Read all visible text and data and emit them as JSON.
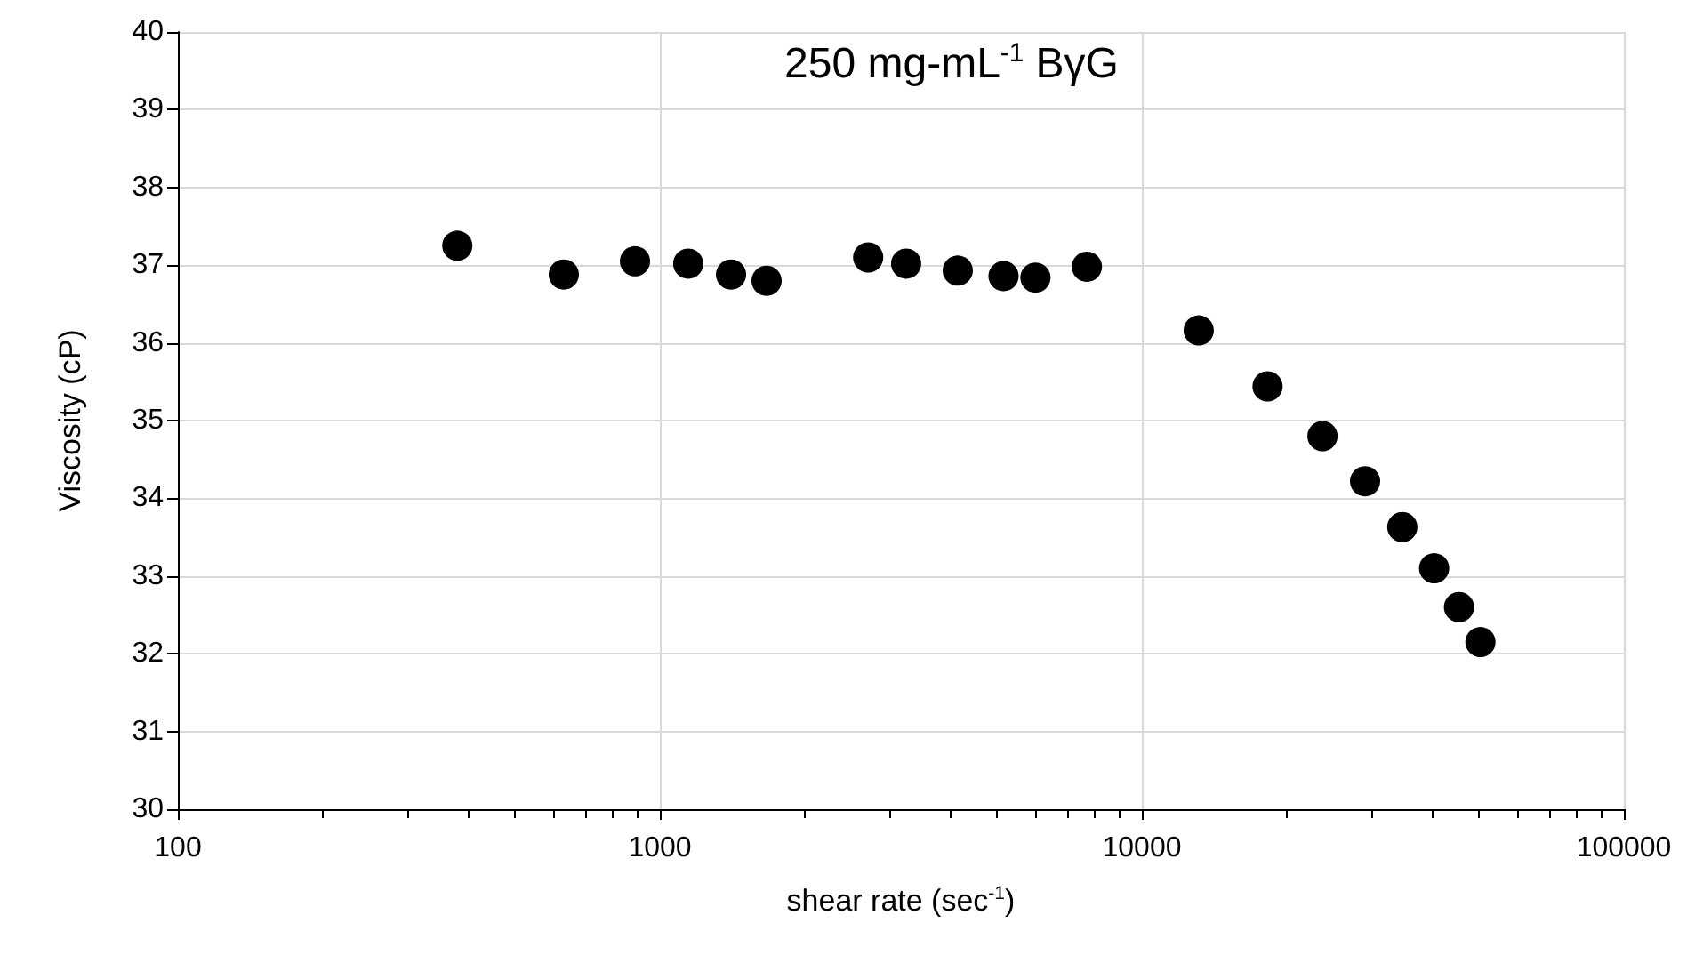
{
  "chart_data": {
    "type": "scatter",
    "title": "250 mg-mL$^{-1}$ BγG",
    "xlabel": "shear rate (sec$^{-1}$)",
    "ylabel": "Viscosity (cP)",
    "x": [
      380,
      632,
      888,
      1145,
      1405,
      1665,
      2705,
      3243,
      4150,
      5165,
      6015,
      7690,
      13120,
      18230,
      23700,
      29050,
      34700,
      40400,
      45500,
      50400
    ],
    "values": [
      37.25,
      36.88,
      37.05,
      37.02,
      36.88,
      36.8,
      37.1,
      37.02,
      36.93,
      36.86,
      36.84,
      36.98,
      36.16,
      35.44,
      34.8,
      34.22,
      33.63,
      33.1,
      32.6,
      32.15
    ],
    "color": "#000000",
    "marker": "circle",
    "log": "x",
    "xlim": [
      100,
      100000
    ],
    "xticks": [
      100,
      1000,
      10000,
      100000
    ],
    "ylim": [
      30,
      40
    ],
    "yticks": [
      30,
      31,
      32,
      33,
      34,
      35,
      36,
      37,
      38,
      39,
      40
    ],
    "grid": true
  }
}
